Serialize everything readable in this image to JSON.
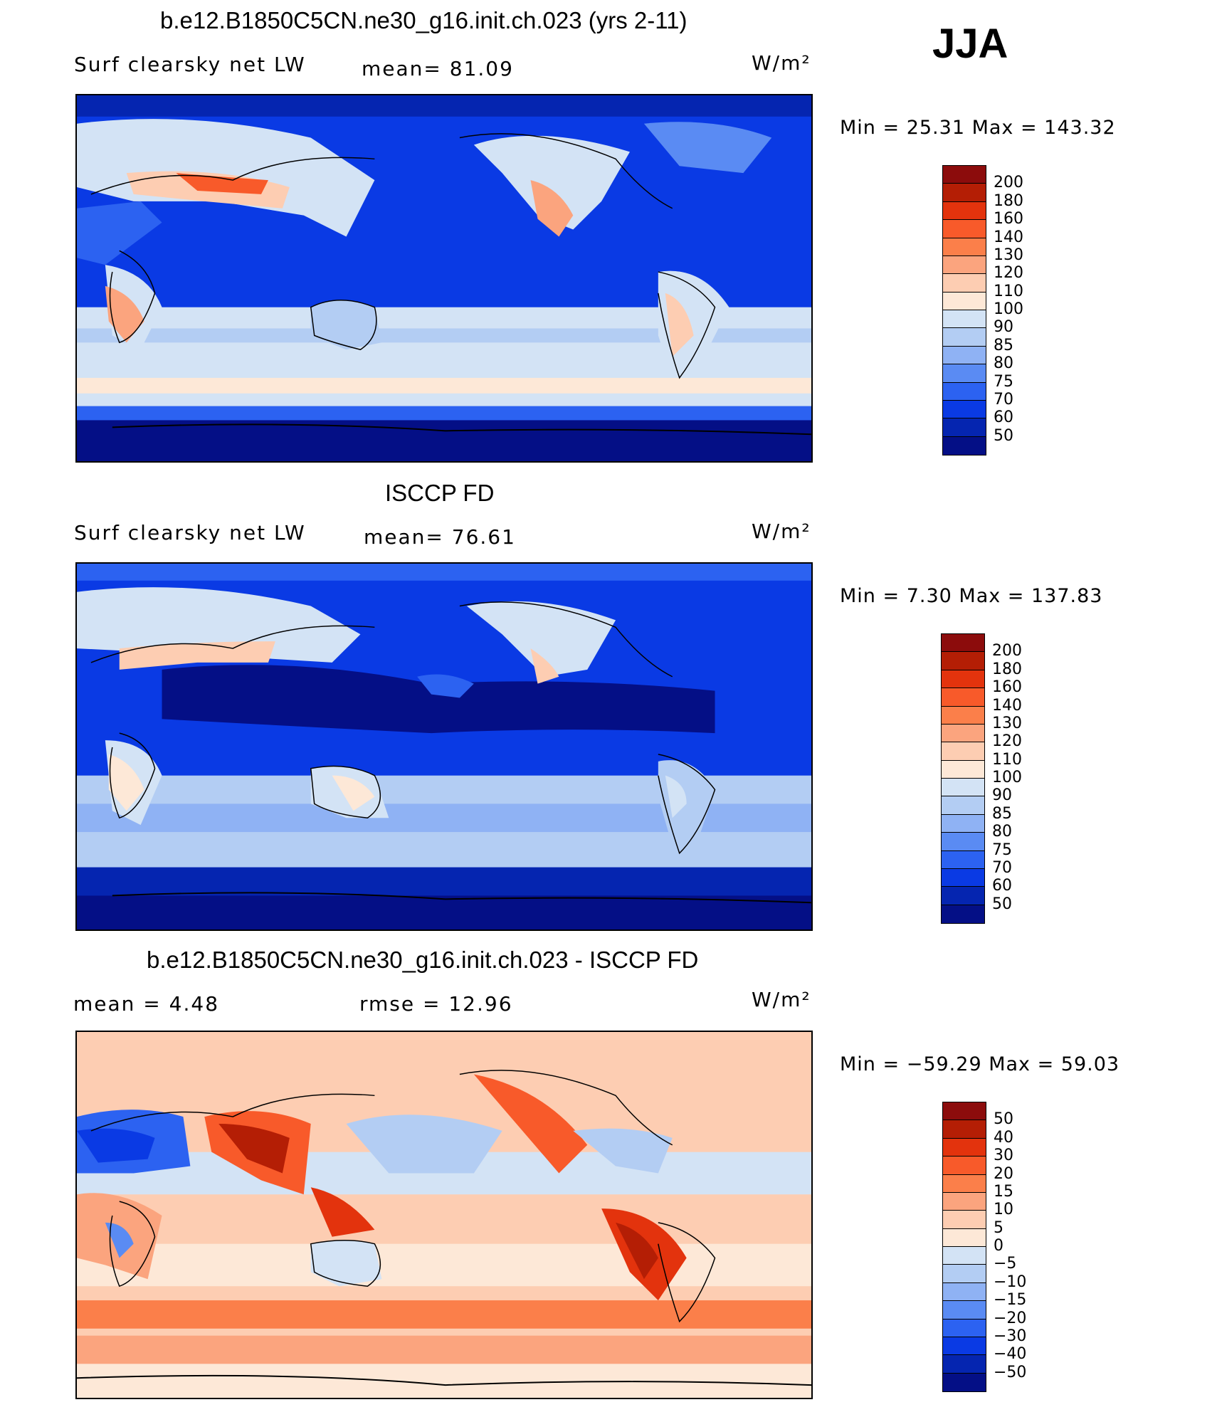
{
  "season": "JJA",
  "units": "W/m²",
  "panels": [
    {
      "id": "model",
      "title": "b.e12.B1850C5CN.ne30_g16.init.ch.023 (yrs 2-11)",
      "variable": "Surf  clearsky  net  LW",
      "stat_label": "mean=   81.09",
      "minmax": "Min  =    25.31  Max  =  143.32",
      "colorbar_labels": [
        "200",
        "180",
        "160",
        "140",
        "130",
        "120",
        "110",
        "100",
        "90",
        "85",
        "80",
        "75",
        "70",
        "60",
        "50"
      ],
      "colors": [
        "#8c0c0c",
        "#b41e05",
        "#e3330d",
        "#f85a2a",
        "#fb7f4a",
        "#fba47e",
        "#fdcdb2",
        "#fde8d7",
        "#d3e3f5",
        "#b3cdf3",
        "#8fb2f4",
        "#5a8bf3",
        "#2c62f1",
        "#0a3ae4",
        "#0525b0",
        "#040f86"
      ]
    },
    {
      "id": "obs",
      "title": "ISCCP FD",
      "variable": "Surf  clearsky  net  LW",
      "stat_label": "mean=   76.61",
      "minmax": "Min  =     7.30  Max  =  137.83",
      "colorbar_labels": [
        "200",
        "180",
        "160",
        "140",
        "130",
        "120",
        "110",
        "100",
        "90",
        "85",
        "80",
        "75",
        "70",
        "60",
        "50"
      ],
      "colors": [
        "#8c0c0c",
        "#b41e05",
        "#e3330d",
        "#f85a2a",
        "#fb7f4a",
        "#fba47e",
        "#fdcdb2",
        "#fde8d7",
        "#d3e3f5",
        "#b3cdf3",
        "#8fb2f4",
        "#5a8bf3",
        "#2c62f1",
        "#0a3ae4",
        "#0525b0",
        "#040f86"
      ]
    },
    {
      "id": "diff",
      "title": "b.e12.B1850C5CN.ne30_g16.init.ch.023 - ISCCP FD",
      "stat_label": "mean =     4.48",
      "rmse_label": "rmse  =    12.96",
      "minmax": "Min  = −59.29  Max  =    59.03",
      "colorbar_labels": [
        "50",
        "40",
        "30",
        "20",
        "15",
        "10",
        "5",
        "0",
        "−5",
        "−10",
        "−15",
        "−20",
        "−30",
        "−40",
        "−50"
      ],
      "colors": [
        "#8c0c0c",
        "#b41e05",
        "#e3330d",
        "#f85a2a",
        "#fb7f4a",
        "#fba47e",
        "#fdcdb2",
        "#fde8d7",
        "#d3e3f5",
        "#b3cdf3",
        "#8fb2f4",
        "#5a8bf3",
        "#2c62f1",
        "#0a3ae4",
        "#0525b0",
        "#040f86"
      ]
    }
  ]
}
